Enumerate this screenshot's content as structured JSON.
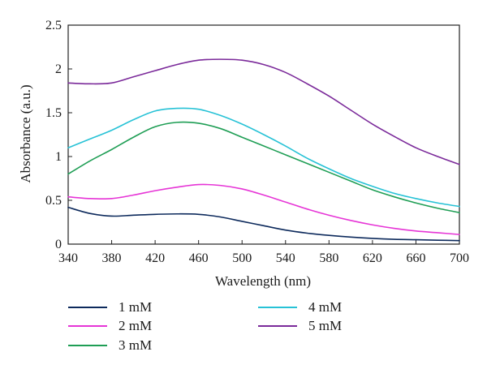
{
  "chart_data": {
    "type": "line",
    "xlabel": "Wavelength (nm)",
    "ylabel": "Absorbance (a.u.)",
    "xlim": [
      340,
      700
    ],
    "ylim": [
      0,
      2.5
    ],
    "x_ticks": [
      340,
      380,
      420,
      460,
      500,
      540,
      580,
      620,
      660,
      700
    ],
    "y_ticks": [
      0,
      0.5,
      1,
      1.5,
      2,
      2.5
    ],
    "grid": false,
    "legend_position": "bottom",
    "x": [
      340,
      360,
      380,
      400,
      420,
      440,
      460,
      480,
      500,
      520,
      540,
      560,
      580,
      600,
      620,
      640,
      660,
      680,
      700
    ],
    "series": [
      {
        "name": "1 mM",
        "color": "#0d2a5c",
        "values": [
          0.42,
          0.35,
          0.32,
          0.33,
          0.34,
          0.345,
          0.34,
          0.31,
          0.26,
          0.21,
          0.16,
          0.125,
          0.1,
          0.08,
          0.065,
          0.055,
          0.05,
          0.045,
          0.04
        ]
      },
      {
        "name": "2 mM",
        "color": "#e635d6",
        "values": [
          0.54,
          0.52,
          0.52,
          0.56,
          0.61,
          0.65,
          0.68,
          0.67,
          0.63,
          0.56,
          0.48,
          0.4,
          0.33,
          0.27,
          0.22,
          0.18,
          0.15,
          0.13,
          0.11
        ]
      },
      {
        "name": "3 mM",
        "color": "#1f9e55",
        "values": [
          0.8,
          0.95,
          1.08,
          1.22,
          1.34,
          1.39,
          1.38,
          1.32,
          1.22,
          1.12,
          1.02,
          0.92,
          0.82,
          0.72,
          0.62,
          0.54,
          0.47,
          0.41,
          0.36
        ]
      },
      {
        "name": "4 mM",
        "color": "#27c2d6",
        "values": [
          1.1,
          1.2,
          1.3,
          1.42,
          1.52,
          1.55,
          1.54,
          1.47,
          1.37,
          1.25,
          1.12,
          0.98,
          0.86,
          0.75,
          0.66,
          0.58,
          0.52,
          0.47,
          0.43
        ]
      },
      {
        "name": "5 mM",
        "color": "#7b2a9a",
        "values": [
          1.84,
          1.83,
          1.84,
          1.91,
          1.98,
          2.05,
          2.1,
          2.11,
          2.1,
          2.05,
          1.96,
          1.83,
          1.69,
          1.53,
          1.37,
          1.23,
          1.1,
          1.0,
          0.91
        ]
      }
    ]
  }
}
